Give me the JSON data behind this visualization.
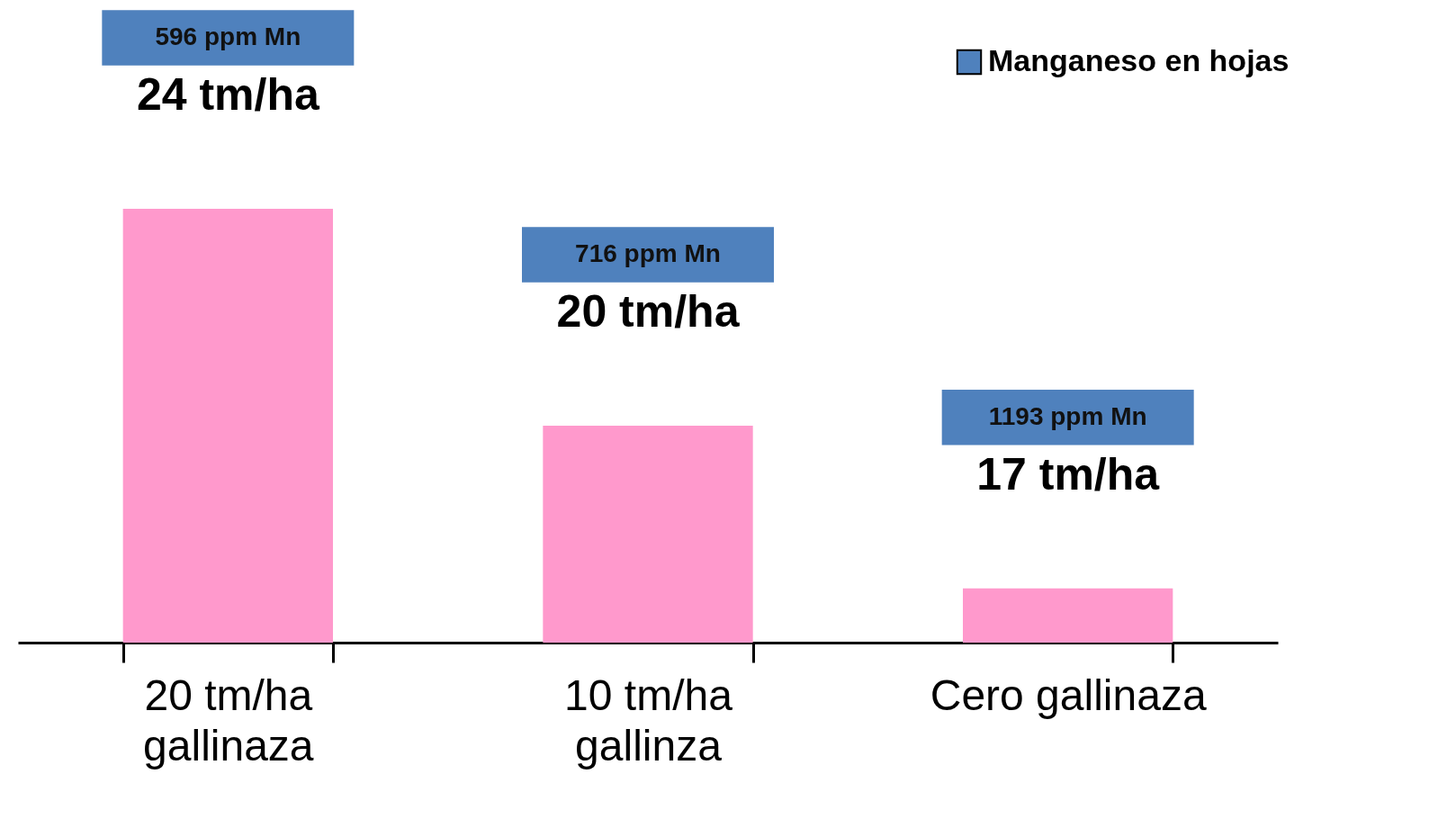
{
  "chart_data": {
    "type": "bar",
    "categories": [
      "20 tm/ha\ngallinaza",
      "10 tm/ha\ngallinza",
      "Cero gallinaza"
    ],
    "legend": "top right",
    "tick_labels": "x",
    "ylim": [
      16,
      24
    ],
    "series": [
      {
        "color": "#ff99cc",
        "values": [
          24,
          20,
          17
        ],
        "value_labels": [
          "24 tm/ha",
          "20 tm/ha",
          "17 tm/ha"
        ]
      },
      {
        "name": "Manganeso en hojas",
        "color": "#4f81bd",
        "values": [
          null,
          null,
          null
        ]
      }
    ],
    "annotations": [
      "596 ppm Mn",
      "716 ppm Mn",
      "1193 ppm Mn"
    ]
  }
}
